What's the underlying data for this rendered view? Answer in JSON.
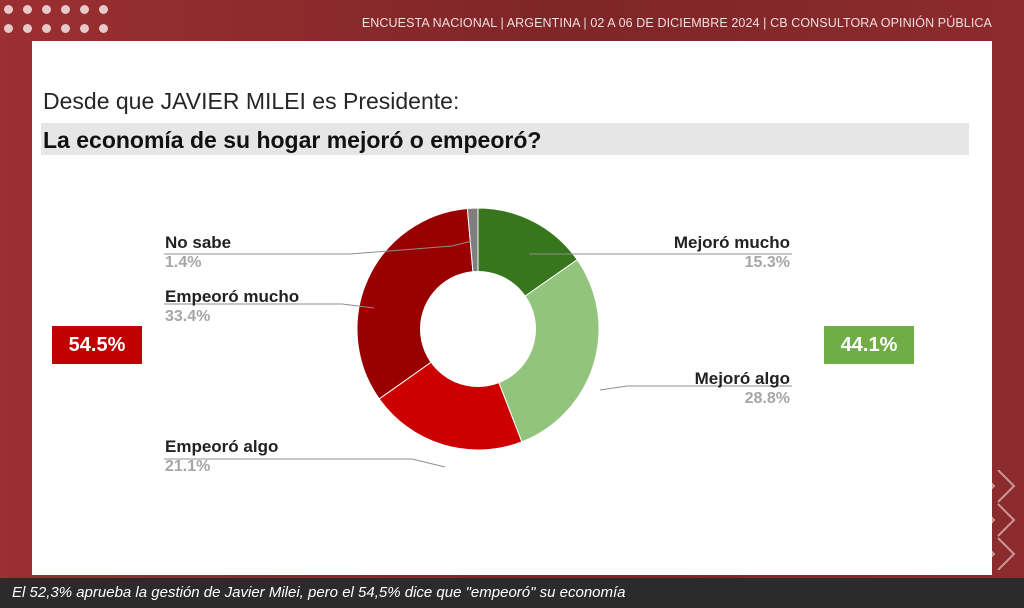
{
  "header": {
    "text": "ENCUESTA NACIONAL  |  ARGENTINA  | 02 A 06 DE DICIEMBRE 2024 | CB CONSULTORA OPINIÓN PÚBLICA"
  },
  "question": {
    "line1": "Desde que JAVIER MILEI es Presidente:",
    "line2": "La economía de su hogar mejoró o empeoró?"
  },
  "totals": {
    "negative": {
      "label": "54.5%",
      "color": "#c00000"
    },
    "positive": {
      "label": "44.1%",
      "color": "#70ad47"
    }
  },
  "chart_data": {
    "type": "pie",
    "donut": true,
    "title": "La economía de su hogar mejoró o empeoró?",
    "slices": [
      {
        "name": "Mejoró mucho",
        "label": "15.3%",
        "value": 15.3,
        "color": "#38761d"
      },
      {
        "name": "Mejoró algo",
        "label": "28.8%",
        "value": 28.8,
        "color": "#93c47d"
      },
      {
        "name": "Empeoró algo",
        "label": "21.1%",
        "value": 21.1,
        "color": "#cc0000"
      },
      {
        "name": "Empeoró mucho",
        "label": "33.4%",
        "value": 33.4,
        "color": "#990000"
      },
      {
        "name": "No sabe",
        "label": "1.4%",
        "value": 1.4,
        "color": "#7f7f7f"
      }
    ]
  },
  "caption": {
    "text": "El 52,3% aprueba la gestión de Javier Milei, pero el 54,5% dice que \"empeoró\" su economía"
  }
}
